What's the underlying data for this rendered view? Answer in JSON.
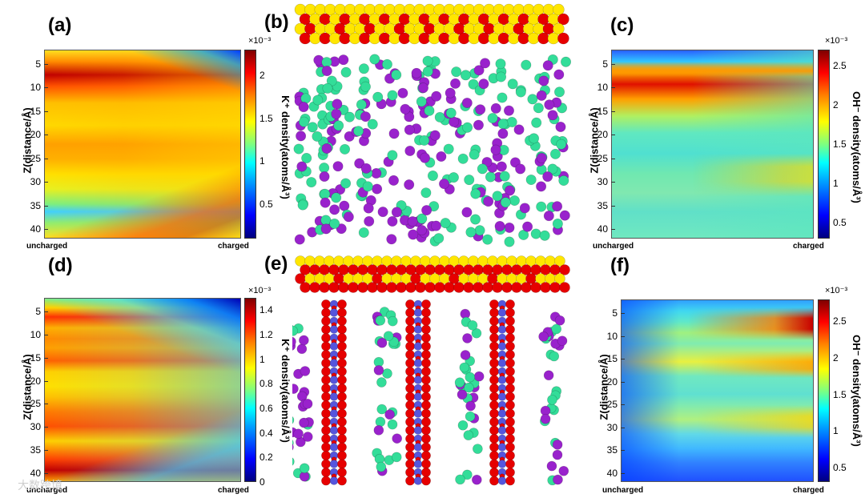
{
  "panel_labels": [
    "(a)",
    "(b)",
    "(c)",
    "(d)",
    "(e)",
    "(f)"
  ],
  "watermark": "大数跨境",
  "colors": {
    "surface_yellow": "#ffe600",
    "surface_red": "#e60000",
    "ion_green": "#33dd99",
    "ion_purple": "#9922cc",
    "slab_blue": "#5555dd"
  },
  "chart_data": [
    {
      "panel": "(a)",
      "type": "heatmap",
      "ylabel": "Z(distance/Å)",
      "x_tick_labels": [
        "uncharged",
        "charged"
      ],
      "y_ticks": [
        5,
        10,
        15,
        20,
        25,
        30,
        35,
        40
      ],
      "ylim": [
        2,
        42
      ],
      "colorbar": {
        "label": "K⁺ density(atoms/Å³)",
        "exponent": "×10⁻³",
        "ticks": [
          "0.5",
          "1",
          "1.5",
          "2"
        ],
        "tick_values": [
          0.5,
          1,
          1.5,
          2
        ],
        "range": [
          0.1,
          2.3
        ]
      }
    },
    {
      "panel": "(c)",
      "type": "heatmap",
      "ylabel": "Z(distance/Å)",
      "x_tick_labels": [
        "uncharged",
        "charged"
      ],
      "y_ticks": [
        5,
        10,
        15,
        20,
        25,
        30,
        35,
        40
      ],
      "ylim": [
        2,
        42
      ],
      "colorbar": {
        "label": "OH⁻ density(atoms/Å³)",
        "exponent": "×10⁻³",
        "ticks": [
          "0.5",
          "1",
          "1.5",
          "2",
          "2.5"
        ],
        "tick_values": [
          0.5,
          1,
          1.5,
          2,
          2.5
        ],
        "range": [
          0.3,
          2.7
        ]
      }
    },
    {
      "panel": "(d)",
      "type": "heatmap",
      "ylabel": "Z(distance/Å)",
      "x_tick_labels": [
        "uncharged",
        "charged"
      ],
      "y_ticks": [
        5,
        10,
        15,
        20,
        25,
        30,
        35,
        40
      ],
      "ylim": [
        2,
        42
      ],
      "colorbar": {
        "label": "K⁺ density(atoms/Å³)",
        "exponent": "×10⁻³",
        "ticks": [
          "0",
          "0.2",
          "0.4",
          "0.6",
          "0.8",
          "1",
          "1.2",
          "1.4"
        ],
        "tick_values": [
          0,
          0.2,
          0.4,
          0.6,
          0.8,
          1,
          1.2,
          1.4
        ],
        "range": [
          0,
          1.5
        ]
      }
    },
    {
      "panel": "(f)",
      "type": "heatmap",
      "ylabel": "Z(distance/Å)",
      "x_tick_labels": [
        "uncharged",
        "charged"
      ],
      "y_ticks": [
        5,
        10,
        15,
        20,
        25,
        30,
        35,
        40
      ],
      "ylim": [
        2,
        42
      ],
      "colorbar": {
        "label": "OH⁻ density(atoms/Å³)",
        "exponent": "×10⁻³",
        "ticks": [
          "0.5",
          "1",
          "1.5",
          "2",
          "2.5"
        ],
        "tick_values": [
          0.5,
          1,
          1.5,
          2,
          2.5
        ],
        "range": [
          0.3,
          2.8
        ]
      }
    }
  ]
}
